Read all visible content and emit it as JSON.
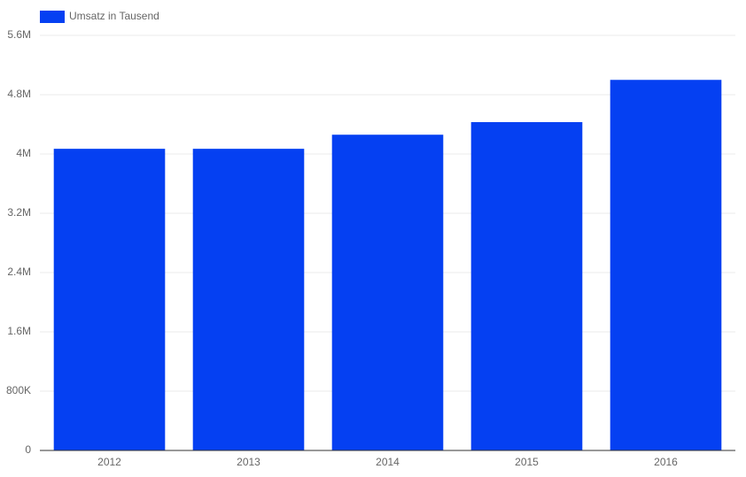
{
  "chart_data": {
    "type": "bar",
    "categories": [
      "2012",
      "2013",
      "2014",
      "2015",
      "2016"
    ],
    "series": [
      {
        "name": "Umsatz in Tausend",
        "color": "#0540f2",
        "values": [
          4070000,
          4070000,
          4260000,
          4430000,
          5000000
        ]
      }
    ],
    "ylim": [
      0,
      5600000
    ],
    "yticks": [
      0,
      {
        "value": 800000,
        "label": "800K"
      },
      {
        "value": 1600000,
        "label": "1.6M"
      },
      {
        "value": 2400000,
        "label": "2.4M"
      },
      {
        "value": 3200000,
        "label": "3.2M"
      },
      {
        "value": 4000000,
        "label": "4M"
      },
      {
        "value": 4800000,
        "label": "4.8M"
      },
      {
        "value": 5600000,
        "label": "5.6M"
      }
    ],
    "grid": true,
    "legend": "top-left"
  }
}
